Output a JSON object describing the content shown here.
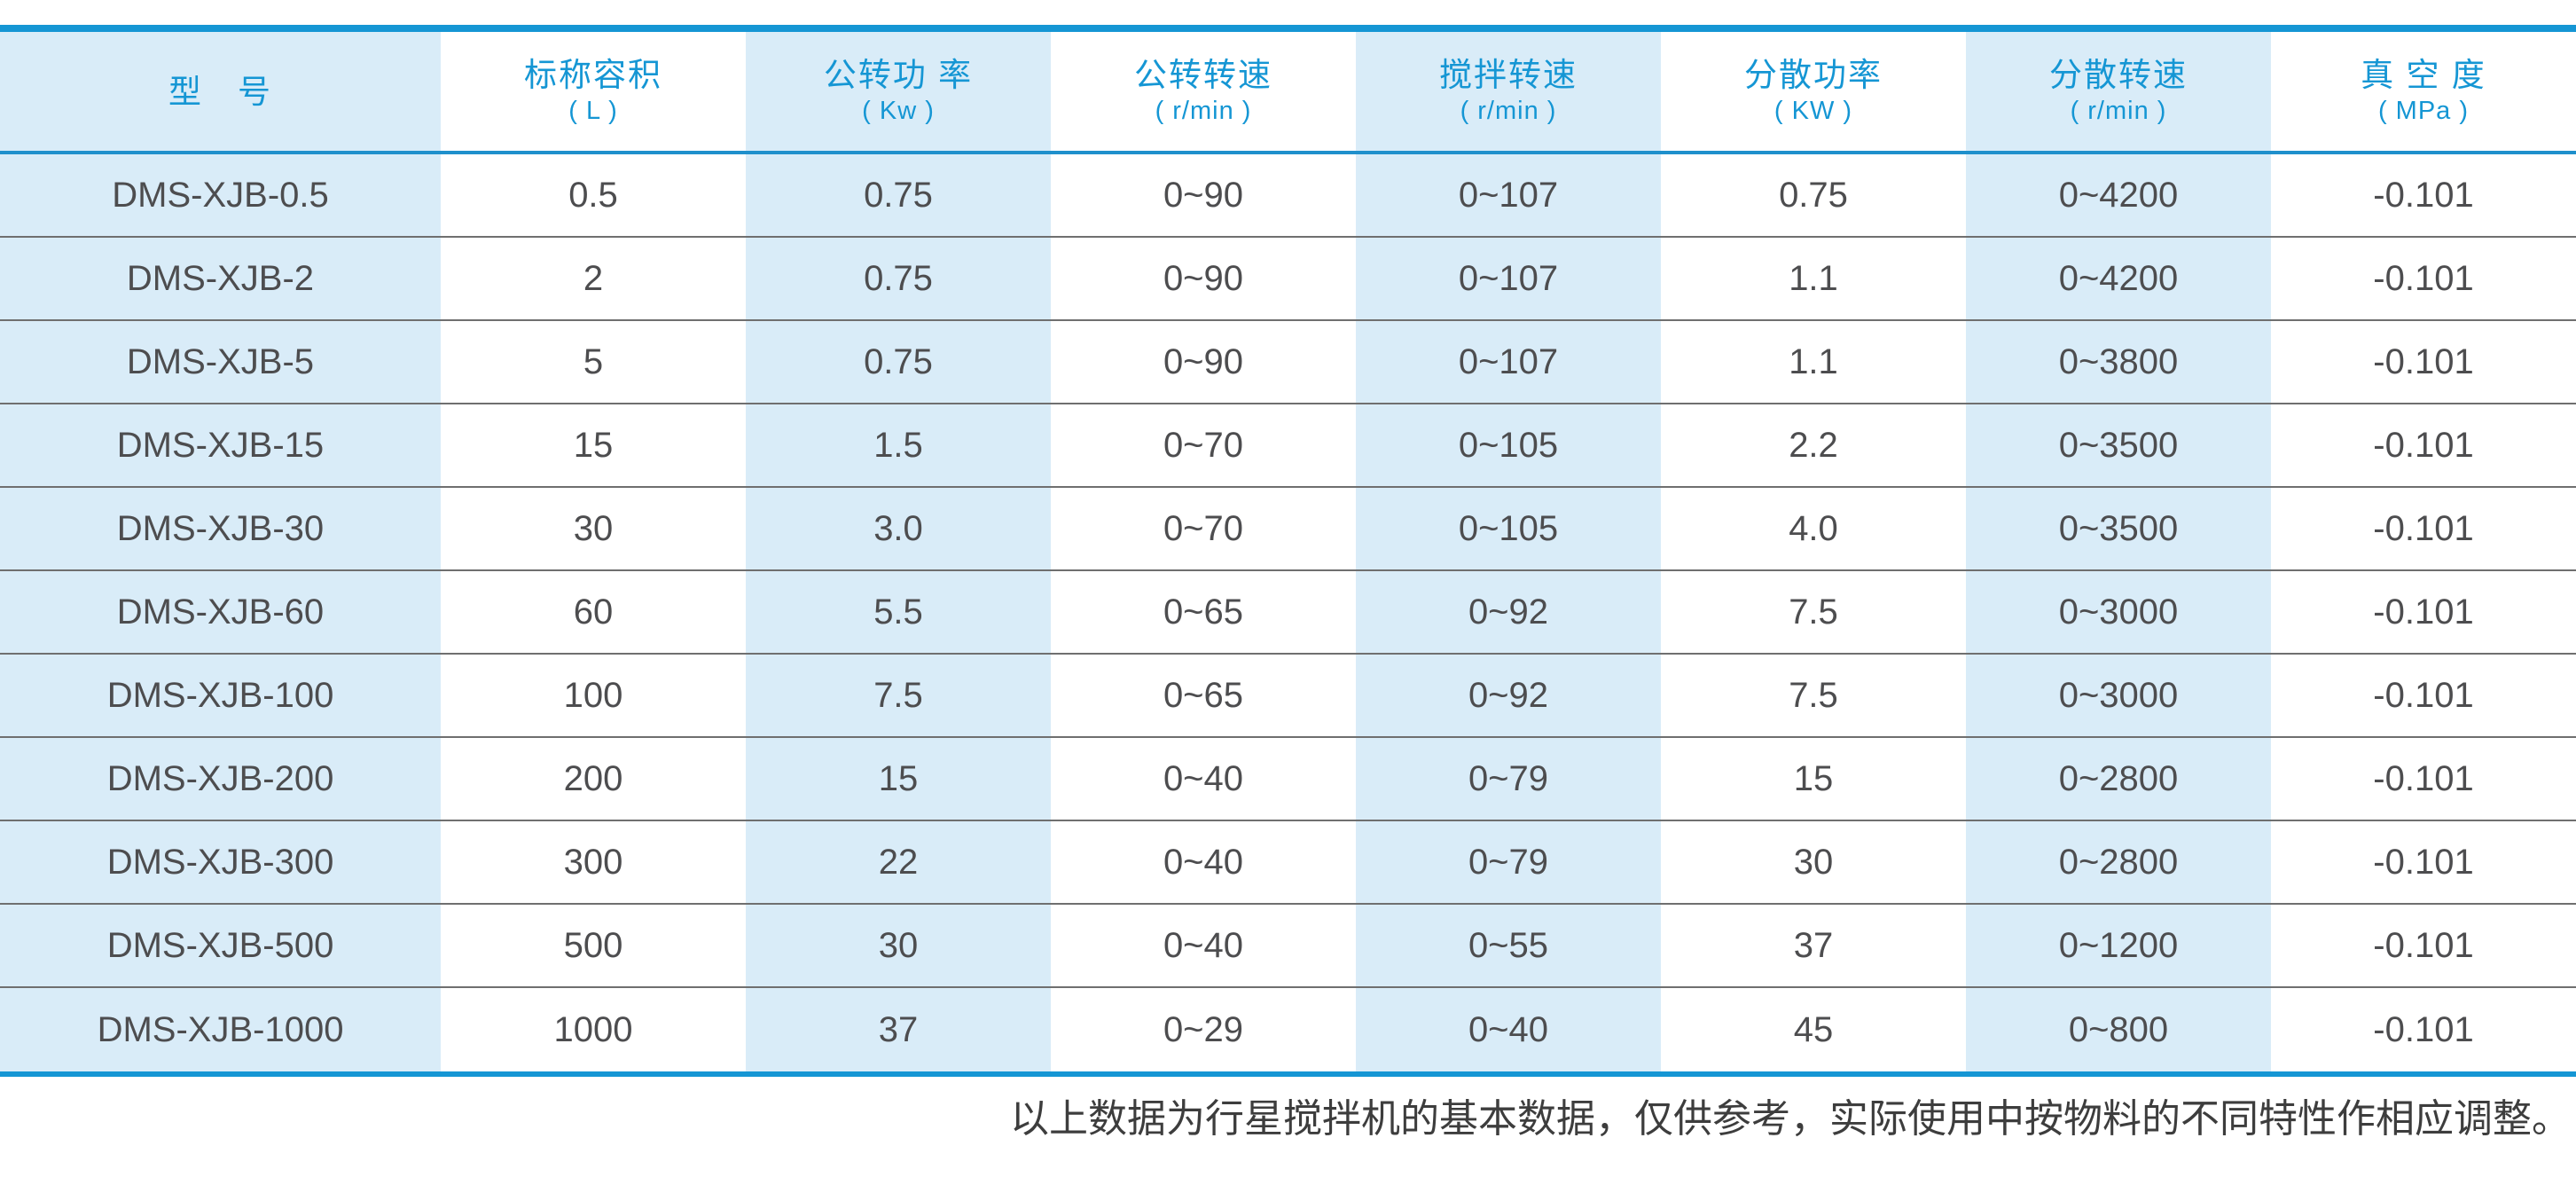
{
  "colors": {
    "accent_blue": "#1596d4",
    "header_rule_blue": "#1f90cc",
    "column_stripe_blue": "#d9ecf8",
    "body_text_gray": "#4d4d4f",
    "row_separator_gray": "#6f6f6f",
    "footnote_gray": "#3d3d3d"
  },
  "table": {
    "columns": [
      {
        "title": "型　号",
        "unit": ""
      },
      {
        "title": "标称容积",
        "unit": "( L )"
      },
      {
        "title": "公转功 率",
        "unit": "( Kw )"
      },
      {
        "title": "公转转速",
        "unit": "( r/min )"
      },
      {
        "title": "搅拌转速",
        "unit": "( r/min )"
      },
      {
        "title": "分散功率",
        "unit": "( KW )"
      },
      {
        "title": "分散转速",
        "unit": "( r/min )"
      },
      {
        "title": "真 空 度",
        "unit": "( MPa )"
      }
    ],
    "rows": [
      [
        "DMS-XJB-0.5",
        "0.5",
        "0.75",
        "0~90",
        "0~107",
        "0.75",
        "0~4200",
        "-0.101"
      ],
      [
        "DMS-XJB-2",
        "2",
        "0.75",
        "0~90",
        "0~107",
        "1.1",
        "0~4200",
        "-0.101"
      ],
      [
        "DMS-XJB-5",
        "5",
        "0.75",
        "0~90",
        "0~107",
        "1.1",
        "0~3800",
        "-0.101"
      ],
      [
        "DMS-XJB-15",
        "15",
        "1.5",
        "0~70",
        "0~105",
        "2.2",
        "0~3500",
        "-0.101"
      ],
      [
        "DMS-XJB-30",
        "30",
        "3.0",
        "0~70",
        "0~105",
        "4.0",
        "0~3500",
        "-0.101"
      ],
      [
        "DMS-XJB-60",
        "60",
        "5.5",
        "0~65",
        "0~92",
        "7.5",
        "0~3000",
        "-0.101"
      ],
      [
        "DMS-XJB-100",
        "100",
        "7.5",
        "0~65",
        "0~92",
        "7.5",
        "0~3000",
        "-0.101"
      ],
      [
        "DMS-XJB-200",
        "200",
        "15",
        "0~40",
        "0~79",
        "15",
        "0~2800",
        "-0.101"
      ],
      [
        "DMS-XJB-300",
        "300",
        "22",
        "0~40",
        "0~79",
        "30",
        "0~2800",
        "-0.101"
      ],
      [
        "DMS-XJB-500",
        "500",
        "30",
        "0~40",
        "0~55",
        "37",
        "0~1200",
        "-0.101"
      ],
      [
        "DMS-XJB-1000",
        "1000",
        "37",
        "0~29",
        "0~40",
        "45",
        "0~800",
        "-0.101"
      ]
    ]
  },
  "footnote": "以上数据为行星搅拌机的基本数据，仅供参考，实际使用中按物料的不同特性作相应调整。"
}
